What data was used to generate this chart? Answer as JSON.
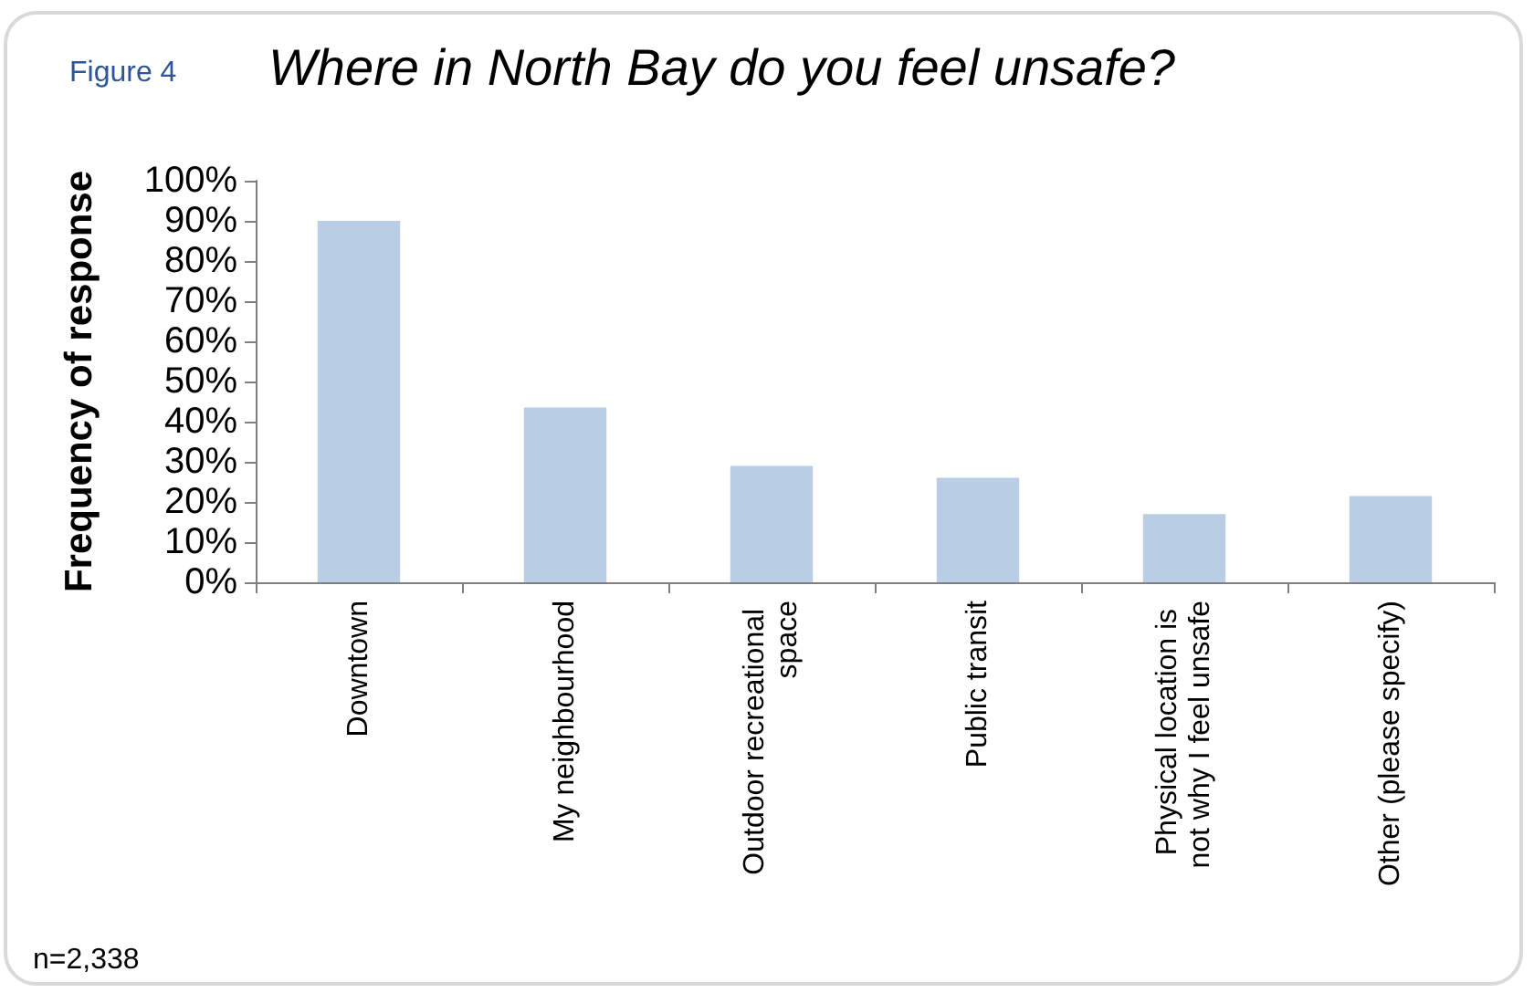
{
  "chart_data": {
    "type": "bar",
    "title": "Where in North Bay do you feel unsafe?",
    "subtitle": "Figure 4",
    "ylabel": "Frequency of response",
    "annotations": [
      "n=2,338"
    ],
    "categories": [
      "Downtown",
      "My neighbourhood",
      "Outdoor recreational space",
      "Public transit",
      "Physical location is not why I feel unsafe",
      "Other (please specify)"
    ],
    "values": [
      90,
      43.5,
      29,
      26,
      17,
      21.5
    ],
    "color": "#b9cde5",
    "ylim": [
      0,
      100
    ],
    "yticks": [
      {
        "value": 0,
        "label": "0%"
      },
      {
        "value": 10,
        "label": "10%"
      },
      {
        "value": 20,
        "label": "20%"
      },
      {
        "value": 30,
        "label": "30%"
      },
      {
        "value": 40,
        "label": "40%"
      },
      {
        "value": 50,
        "label": "50%"
      },
      {
        "value": 60,
        "label": "60%"
      },
      {
        "value": 70,
        "label": "70%"
      },
      {
        "value": 80,
        "label": "80%"
      },
      {
        "value": 90,
        "label": "90%"
      },
      {
        "value": 100,
        "label": "100%"
      }
    ],
    "grid": false
  }
}
